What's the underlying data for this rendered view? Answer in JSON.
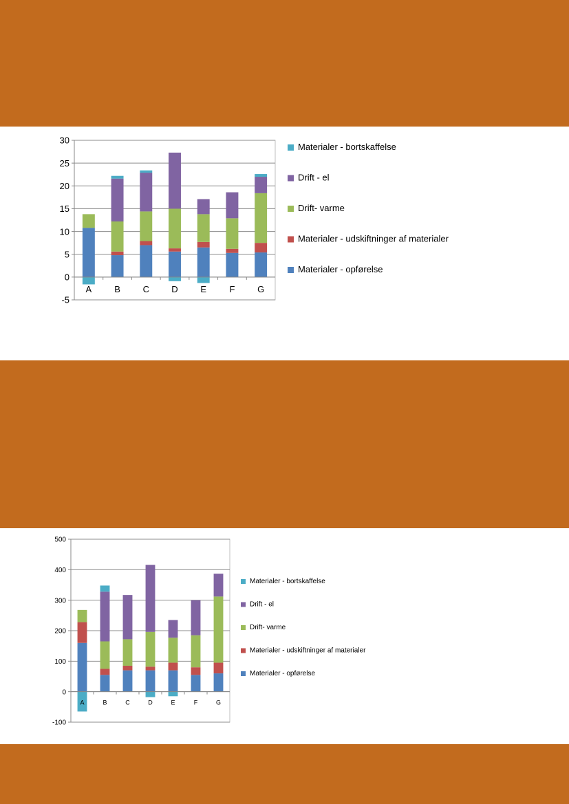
{
  "colors": {
    "band": "#c26b1e",
    "grid": "#8c8c8c",
    "axis": "#888888",
    "series": [
      "#4f81bd",
      "#c0504d",
      "#9bbb59",
      "#8064a2",
      "#4bacc6"
    ]
  },
  "chart_data": [
    {
      "type": "bar",
      "stacked": true,
      "categories": [
        "A",
        "B",
        "C",
        "D",
        "E",
        "F",
        "G"
      ],
      "ylim": [
        -5,
        30
      ],
      "yticks": [
        "30",
        "25",
        "20",
        "15",
        "10",
        "5",
        "0",
        "-5"
      ],
      "title": "",
      "xlabel": "",
      "ylabel": "",
      "legend_position": "right",
      "series": [
        {
          "name": "Materialer - opførelse",
          "values": [
            10.8,
            4.8,
            7.0,
            5.6,
            6.5,
            5.3,
            5.4
          ]
        },
        {
          "name": "Materialer - udskiftninger af materialer",
          "values": [
            0,
            0.8,
            0.9,
            0.7,
            1.2,
            0.9,
            2.1
          ]
        },
        {
          "name": "Drift- varme",
          "values": [
            3.0,
            6.6,
            6.5,
            8.7,
            6.1,
            6.7,
            10.9
          ]
        },
        {
          "name": "Drift - el",
          "values": [
            0,
            9.4,
            8.5,
            12.3,
            3.3,
            5.7,
            3.6
          ]
        },
        {
          "name": "Materialer - bortskaffelse",
          "values": [
            -1.6,
            0.6,
            0.5,
            -0.9,
            -1.3,
            0,
            0.6
          ]
        }
      ]
    },
    {
      "type": "bar",
      "stacked": true,
      "categories": [
        "A",
        "B",
        "C",
        "D",
        "E",
        "F",
        "G"
      ],
      "ylim": [
        -100,
        500
      ],
      "yticks": [
        "500",
        "400",
        "300",
        "200",
        "100",
        "0",
        "-100"
      ],
      "title": "",
      "xlabel": "",
      "ylabel": "",
      "legend_position": "right",
      "series": [
        {
          "name": "Materialer - opførelse",
          "values": [
            160,
            55,
            70,
            70,
            70,
            55,
            60
          ]
        },
        {
          "name": "Materialer - udskiftninger af materialer",
          "values": [
            68,
            20,
            15,
            12,
            25,
            25,
            35
          ]
        },
        {
          "name": "Drift- varme",
          "values": [
            40,
            90,
            87,
            114,
            82,
            105,
            217
          ]
        },
        {
          "name": "Drift - el",
          "values": [
            0,
            163,
            145,
            220,
            58,
            115,
            75
          ]
        },
        {
          "name": "Materialer - bortskaffelse",
          "values": [
            -65,
            20,
            0,
            -18,
            -15,
            0,
            0
          ]
        }
      ]
    }
  ]
}
